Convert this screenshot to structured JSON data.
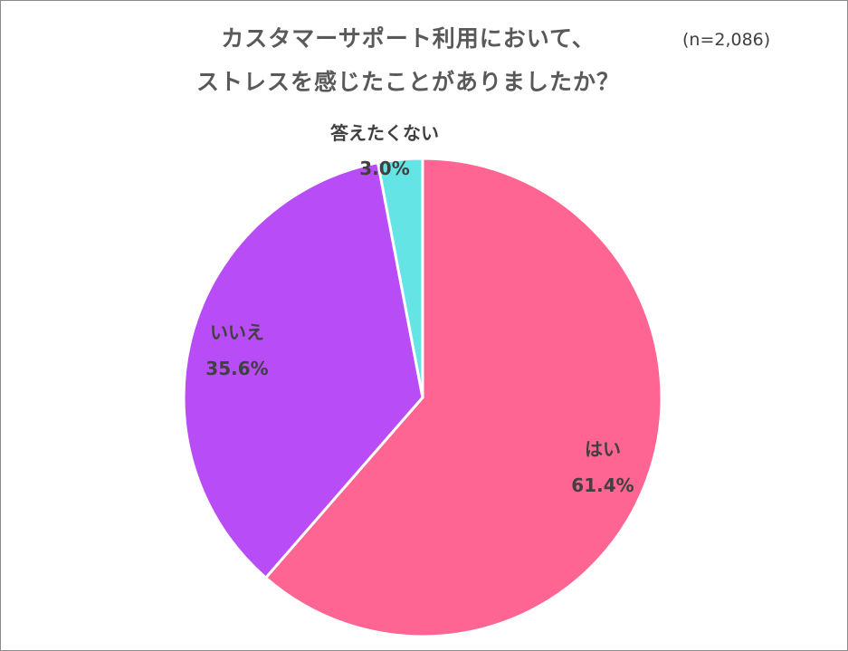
{
  "chart_data": {
    "type": "pie",
    "title_lines": [
      "カスタマーサポート利用において、",
      "ストレスを感じたことがありましたか？"
    ],
    "sample_size": "(n=2,086)",
    "slices": [
      {
        "label": "はい",
        "value": 61.4,
        "value_label": "61.4%",
        "color": "#ff6593"
      },
      {
        "label": "いいえ",
        "value": 35.6,
        "value_label": "35.6%",
        "color": "#b84cf7"
      },
      {
        "label": "答えたくない",
        "value": 3.0,
        "value_label": "3.0%",
        "color": "#64e4e4"
      }
    ]
  }
}
